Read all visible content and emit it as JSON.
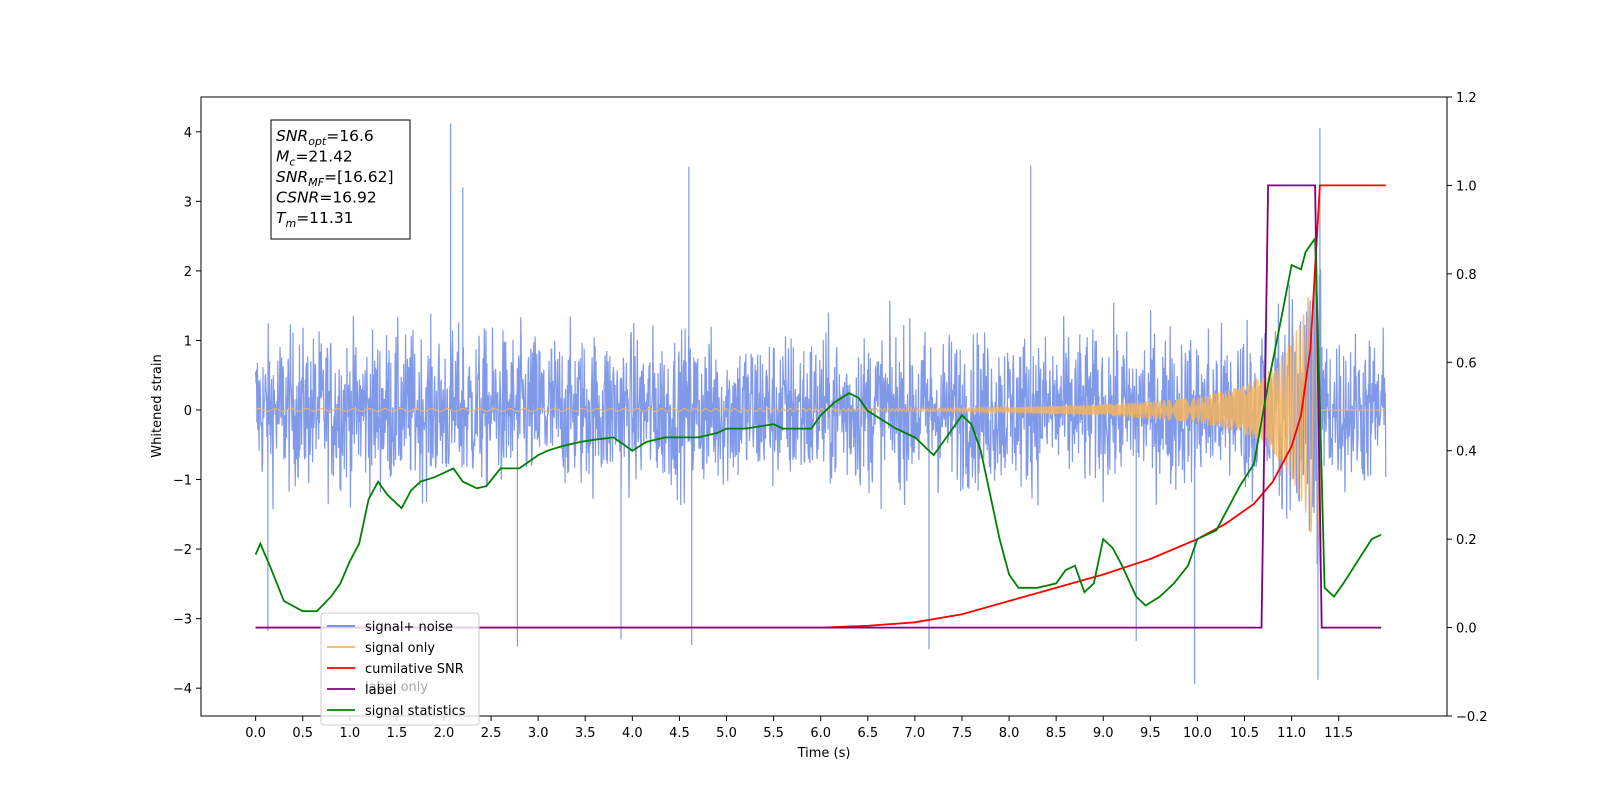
{
  "chart_data": {
    "type": "line",
    "xlabel": "Time (s)",
    "ylabel": "Whitened strain",
    "xlim": [
      -0.58,
      12.65
    ],
    "x_ticks": [
      0.0,
      0.5,
      1.0,
      1.5,
      2.0,
      2.5,
      3.0,
      3.5,
      4.0,
      4.5,
      5.0,
      5.5,
      6.0,
      6.5,
      7.0,
      7.5,
      8.0,
      8.5,
      9.0,
      9.5,
      10.0,
      10.5,
      11.0,
      11.5
    ],
    "x_tick_labels": [
      "0.0",
      "0.5",
      "1.0",
      "1.5",
      "2.0",
      "2.5",
      "3.0",
      "3.5",
      "4.0",
      "4.5",
      "5.0",
      "5.5",
      "6.0",
      "6.5",
      "7.0",
      "7.5",
      "8.0",
      "8.5",
      "9.0",
      "9.5",
      "10.0",
      "10.5",
      "11.0",
      "11.5"
    ],
    "y_left_lim": [
      -4.4,
      4.5
    ],
    "y_left_ticks": [
      4,
      3,
      2,
      1,
      0,
      -1,
      -2,
      -3,
      -4
    ],
    "y_left_tick_labels": [
      "4",
      "3",
      "2",
      "1",
      "0",
      "−1",
      "−2",
      "−3",
      "−4"
    ],
    "y_right_lim": [
      -0.2,
      1.2
    ],
    "y_right_ticks": [
      1.2,
      1.0,
      0.8,
      0.6,
      0.4,
      0.2,
      0.0,
      -0.2
    ],
    "y_right_tick_labels": [
      "1.2",
      "1.0",
      "0.8",
      "0.6",
      "0.4",
      "0.2",
      "0.0",
      "−0.2"
    ],
    "grid": false,
    "legend_position": "bottom-left",
    "series": [
      {
        "name": "signal+ noise",
        "axis": "left",
        "color": "#6b87e5",
        "kind": "noise",
        "x_range": [
          0.0,
          12.0
        ],
        "typical_amplitude": 1.6,
        "peaks": [
          {
            "x": 2.07,
            "y": 4.12
          },
          {
            "x": 2.2,
            "y": 3.2
          },
          {
            "x": 4.6,
            "y": 3.5
          },
          {
            "x": 8.23,
            "y": 3.52
          },
          {
            "x": 11.3,
            "y": 4.05
          },
          {
            "x": 0.13,
            "y": -3.18
          },
          {
            "x": 2.78,
            "y": -3.4
          },
          {
            "x": 3.88,
            "y": -3.3
          },
          {
            "x": 4.63,
            "y": -3.38
          },
          {
            "x": 7.15,
            "y": -3.44
          },
          {
            "x": 9.35,
            "y": -3.32
          },
          {
            "x": 9.97,
            "y": -3.94
          },
          {
            "x": 11.28,
            "y": -3.88
          }
        ]
      },
      {
        "name": "signal only",
        "axis": "left",
        "color": "#f5b45f",
        "kind": "chirp",
        "x_range": [
          0.0,
          12.0
        ],
        "merger_time": 11.31,
        "envelope": [
          [
            7.0,
            0.02
          ],
          [
            8.0,
            0.04
          ],
          [
            9.0,
            0.08
          ],
          [
            10.0,
            0.18
          ],
          [
            10.5,
            0.35
          ],
          [
            10.8,
            0.6
          ],
          [
            11.0,
            1.0
          ],
          [
            11.15,
            1.5
          ],
          [
            11.25,
            2.0
          ],
          [
            11.31,
            2.4
          ]
        ]
      },
      {
        "name": "cumilative SNR",
        "axis": "right",
        "color": "#ff0000",
        "x": [
          0.0,
          6.0,
          6.5,
          7.0,
          7.5,
          8.0,
          8.5,
          9.0,
          9.5,
          10.0,
          10.3,
          10.6,
          10.8,
          11.0,
          11.1,
          11.2,
          11.3,
          12.0
        ],
        "y": [
          0.0,
          0.0,
          0.004,
          0.012,
          0.03,
          0.06,
          0.09,
          0.12,
          0.155,
          0.2,
          0.235,
          0.28,
          0.33,
          0.41,
          0.48,
          0.63,
          1.0,
          1.0
        ]
      },
      {
        "name": "label",
        "axis": "right",
        "color": "#800080",
        "x": [
          0.0,
          10.68,
          10.75,
          11.25,
          11.32,
          11.95
        ],
        "y": [
          0.0,
          0.0,
          1.0,
          1.0,
          0.0,
          0.0
        ]
      },
      {
        "name": "signal statistics",
        "axis": "right",
        "color": "#008000",
        "x": [
          0.0,
          0.05,
          0.15,
          0.3,
          0.5,
          0.65,
          0.8,
          0.9,
          1.0,
          1.1,
          1.2,
          1.3,
          1.4,
          1.55,
          1.65,
          1.75,
          1.9,
          2.0,
          2.1,
          2.2,
          2.35,
          2.45,
          2.6,
          2.8,
          3.0,
          3.1,
          3.25,
          3.45,
          3.6,
          3.8,
          4.0,
          4.15,
          4.35,
          4.5,
          4.7,
          4.9,
          5.0,
          5.2,
          5.5,
          5.6,
          5.9,
          6.0,
          6.15,
          6.3,
          6.4,
          6.5,
          6.8,
          7.0,
          7.2,
          7.4,
          7.5,
          7.6,
          7.7,
          7.8,
          7.9,
          8.0,
          8.1,
          8.3,
          8.5,
          8.6,
          8.7,
          8.8,
          8.9,
          9.0,
          9.1,
          9.2,
          9.35,
          9.45,
          9.6,
          9.75,
          9.9,
          10.0,
          10.1,
          10.2,
          10.3,
          10.45,
          10.6,
          10.75,
          10.9,
          11.0,
          11.1,
          11.15,
          11.25,
          11.3,
          11.35,
          11.45,
          11.55,
          11.7,
          11.85,
          11.95
        ],
        "y": [
          0.165,
          0.19,
          0.14,
          0.06,
          0.037,
          0.037,
          0.07,
          0.1,
          0.15,
          0.19,
          0.29,
          0.33,
          0.3,
          0.27,
          0.31,
          0.33,
          0.34,
          0.35,
          0.36,
          0.33,
          0.315,
          0.32,
          0.36,
          0.36,
          0.39,
          0.4,
          0.41,
          0.42,
          0.425,
          0.43,
          0.4,
          0.42,
          0.43,
          0.43,
          0.43,
          0.44,
          0.45,
          0.45,
          0.46,
          0.45,
          0.45,
          0.48,
          0.51,
          0.53,
          0.52,
          0.49,
          0.45,
          0.43,
          0.39,
          0.45,
          0.48,
          0.46,
          0.4,
          0.3,
          0.2,
          0.12,
          0.09,
          0.09,
          0.1,
          0.13,
          0.14,
          0.08,
          0.1,
          0.2,
          0.18,
          0.14,
          0.07,
          0.05,
          0.07,
          0.1,
          0.14,
          0.2,
          0.21,
          0.22,
          0.26,
          0.32,
          0.37,
          0.55,
          0.71,
          0.82,
          0.81,
          0.85,
          0.88,
          0.5,
          0.09,
          0.07,
          0.1,
          0.15,
          0.2,
          0.21
        ]
      }
    ],
    "annotation": [
      {
        "var": "SNR",
        "sub": "opt",
        "value": "=16.6"
      },
      {
        "var": "M",
        "sub": "c",
        "value": "=21.42"
      },
      {
        "var": "SNR",
        "sub": "MF",
        "value": "=[16.62]"
      },
      {
        "var": "CSNR",
        "sub": "",
        "value": "=16.92"
      },
      {
        "var": "T",
        "sub": "m",
        "value": "=11.31"
      }
    ],
    "legend": [
      "signal+ noise",
      "signal only",
      "cumilative SNR",
      "label",
      "signal statistics"
    ],
    "legend_background_text": [
      "label only"
    ]
  }
}
